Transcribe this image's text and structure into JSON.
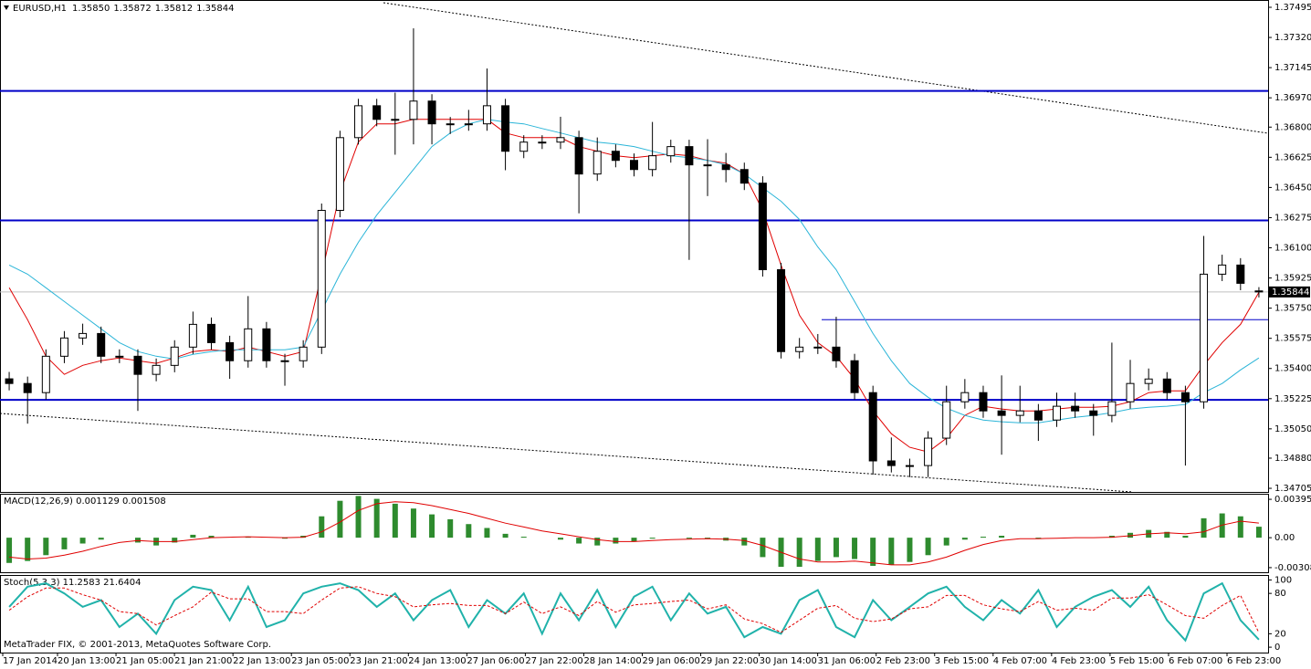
{
  "chart_data": [
    {
      "type": "candlestick",
      "symbol": "EURUSD,H1",
      "quote": [
        "1.35850",
        "1.35872",
        "1.35812",
        "1.35844"
      ],
      "price_tag": "1.35844",
      "up_color": "#ffffff",
      "down_color": "#000000",
      "level_color": "#0000c8",
      "open": [
        1.3534,
        1.35313,
        1.3526,
        1.35471,
        1.35577,
        1.35603,
        1.35471,
        1.35471,
        1.35366,
        1.35418,
        1.35524,
        1.35656,
        1.3555,
        1.35445,
        1.3563,
        1.35445,
        1.35445,
        1.35524,
        1.36317,
        1.36739,
        1.36924,
        1.36845,
        1.36845,
        1.36951,
        1.36819,
        1.36819,
        1.36819,
        1.36924,
        1.3666,
        1.36713,
        1.36713,
        1.36739,
        1.36528,
        1.3666,
        1.36607,
        1.36554,
        1.36634,
        1.36687,
        1.36581,
        1.36581,
        1.36554,
        1.36475,
        1.35973,
        1.35498,
        1.35524,
        1.35524,
        1.35445,
        1.3526,
        1.34864,
        1.34837,
        1.34837,
        1.34996,
        1.35207,
        1.3526,
        1.35154,
        1.35128,
        1.35154,
        1.35101,
        1.35181,
        1.35154,
        1.35128,
        1.35207,
        1.35313,
        1.35339,
        1.3526,
        1.35207,
        1.35947,
        1.36,
        1.3585
      ],
      "high": [
        1.3538,
        1.35353,
        1.35511,
        1.35617,
        1.3566,
        1.35643,
        1.35511,
        1.35511,
        1.35458,
        1.35564,
        1.3573,
        1.35696,
        1.3559,
        1.3582,
        1.3567,
        1.35485,
        1.35564,
        1.36357,
        1.36779,
        1.36964,
        1.36964,
        1.37,
        1.37373,
        1.36991,
        1.36859,
        1.369,
        1.3714,
        1.36964,
        1.36753,
        1.36753,
        1.3686,
        1.36779,
        1.3674,
        1.367,
        1.36647,
        1.3683,
        1.36727,
        1.36727,
        1.3673,
        1.3665,
        1.36594,
        1.36515,
        1.36013,
        1.35577,
        1.356,
        1.357,
        1.35485,
        1.353,
        1.35,
        1.34877,
        1.35036,
        1.353,
        1.35339,
        1.353,
        1.3536,
        1.353,
        1.35194,
        1.3526,
        1.3526,
        1.35194,
        1.3555,
        1.3545,
        1.354,
        1.35379,
        1.353,
        1.36169,
        1.3606,
        1.3604,
        1.35872
      ],
      "low": [
        1.35273,
        1.3508,
        1.3522,
        1.35431,
        1.35537,
        1.35431,
        1.35431,
        1.35154,
        1.35326,
        1.35378,
        1.35484,
        1.3551,
        1.3534,
        1.35405,
        1.35405,
        1.353,
        1.35405,
        1.35484,
        1.36277,
        1.36699,
        1.36805,
        1.3664,
        1.367,
        1.367,
        1.3676,
        1.36779,
        1.36779,
        1.3655,
        1.3662,
        1.36673,
        1.36673,
        1.363,
        1.36488,
        1.36567,
        1.36514,
        1.36514,
        1.36594,
        1.3603,
        1.364,
        1.3648,
        1.36435,
        1.35933,
        1.35458,
        1.35458,
        1.35484,
        1.35405,
        1.3522,
        1.34784,
        1.34797,
        1.3477,
        1.3477,
        1.34956,
        1.35167,
        1.35114,
        1.349,
        1.35088,
        1.3498,
        1.35061,
        1.35114,
        1.3501,
        1.35088,
        1.35167,
        1.35273,
        1.3522,
        1.34837,
        1.35167,
        1.35907,
        1.35854,
        1.35812
      ],
      "close": [
        1.35313,
        1.3526,
        1.35471,
        1.35577,
        1.35603,
        1.35471,
        1.35471,
        1.35366,
        1.35418,
        1.35524,
        1.35656,
        1.3555,
        1.35445,
        1.3563,
        1.35445,
        1.35445,
        1.35524,
        1.36317,
        1.36739,
        1.36924,
        1.36845,
        1.36845,
        1.36951,
        1.36819,
        1.36819,
        1.36819,
        1.36924,
        1.3666,
        1.36713,
        1.36713,
        1.36739,
        1.36528,
        1.3666,
        1.36607,
        1.36554,
        1.36634,
        1.36687,
        1.36581,
        1.36581,
        1.36554,
        1.36475,
        1.35973,
        1.35498,
        1.35524,
        1.35524,
        1.35445,
        1.3526,
        1.34864,
        1.34837,
        1.34837,
        1.34996,
        1.35207,
        1.3526,
        1.35154,
        1.35128,
        1.35154,
        1.35101,
        1.35181,
        1.35154,
        1.35128,
        1.35207,
        1.35313,
        1.35339,
        1.3526,
        1.35207,
        1.35947,
        1.36,
        1.35894,
        1.35844
      ],
      "moving_averages": [
        {
          "color": "#e00000",
          "values": [
            1.35868,
            1.35683,
            1.35471,
            1.35366,
            1.35418,
            1.35445,
            1.35461,
            1.35445,
            1.3543,
            1.35461,
            1.35498,
            1.35508,
            1.35498,
            1.35524,
            1.35498,
            1.35471,
            1.35498,
            1.35947,
            1.36422,
            1.36713,
            1.36819,
            1.36819,
            1.36845,
            1.36845,
            1.36845,
            1.36845,
            1.36845,
            1.36766,
            1.36739,
            1.36739,
            1.36739,
            1.36687,
            1.3666,
            1.36634,
            1.36623,
            1.36634,
            1.36644,
            1.36634,
            1.36607,
            1.36591,
            1.36528,
            1.36317,
            1.36,
            1.35709,
            1.3555,
            1.35471,
            1.35339,
            1.35154,
            1.35022,
            1.34943,
            1.34916,
            1.34996,
            1.35128,
            1.35181,
            1.35165,
            1.35154,
            1.35154,
            1.35165,
            1.35175,
            1.35175,
            1.35181,
            1.35207,
            1.3526,
            1.3527,
            1.3527,
            1.35418,
            1.3555,
            1.35656,
            1.35841
          ]
        },
        {
          "color": "#2bb5d8",
          "values": [
            1.36,
            1.35947,
            1.35868,
            1.35788,
            1.35709,
            1.3563,
            1.3555,
            1.35498,
            1.35471,
            1.35455,
            1.35482,
            1.35498,
            1.35508,
            1.35508,
            1.35508,
            1.35508,
            1.35524,
            1.35735,
            1.35947,
            1.36132,
            1.3629,
            1.36422,
            1.36554,
            1.36687,
            1.36766,
            1.36819,
            1.36845,
            1.36829,
            1.36819,
            1.36792,
            1.36766,
            1.36739,
            1.36713,
            1.36702,
            1.36687,
            1.3666,
            1.36634,
            1.36623,
            1.36607,
            1.36581,
            1.36528,
            1.36449,
            1.3637,
            1.36264,
            1.36105,
            1.35973,
            1.35788,
            1.35603,
            1.35445,
            1.35313,
            1.35233,
            1.3517,
            1.35128,
            1.35101,
            1.35091,
            1.35085,
            1.35085,
            1.35101,
            1.35117,
            1.35128,
            1.35144,
            1.35165,
            1.35175,
            1.35181,
            1.35191,
            1.3526,
            1.35313,
            1.35392,
            1.35461
          ]
        }
      ],
      "levels": [
        1.3701,
        1.36259,
        1.35218
      ],
      "support_line": 1.35683,
      "ylim": [
        1.34684,
        1.37532
      ],
      "yticks": [
        1.37495,
        {
          "value": 1.3732,
          "label": "1.37320"
        },
        1.37145,
        {
          "value": 1.3697,
          "label": "1.36970"
        },
        {
          "value": 1.368,
          "label": "1.36800"
        },
        1.36625,
        {
          "value": 1.3645,
          "label": "1.36450"
        },
        1.36275,
        {
          "value": 1.361,
          "label": "1.36100"
        },
        1.35925,
        {
          "value": 1.3575,
          "label": "1.35750"
        },
        1.35575,
        {
          "value": 1.354,
          "label": "1.35400"
        },
        1.35225,
        {
          "value": 1.3505,
          "label": "1.35050"
        },
        {
          "value": 1.3488,
          "label": "1.34880"
        },
        1.34705
      ],
      "time_labels": [
        "17 Jan 2014",
        "20 Jan 13:00",
        "21 Jan 05:00",
        "21 Jan 21:00",
        "22 Jan 13:00",
        "23 Jan 05:00",
        "23 Jan 21:00",
        "24 Jan 13:00",
        "27 Jan 06:00",
        "27 Jan 22:00",
        "28 Jan 14:00",
        "29 Jan 06:00",
        "29 Jan 22:00",
        "30 Jan 14:00",
        "31 Jan 06:00",
        "2 Feb 23:00",
        "3 Feb 15:00",
        "4 Feb 07:00",
        "4 Feb 23:00",
        "5 Feb 15:00",
        "6 Feb 07:00",
        "6 Feb 23:00"
      ]
    },
    {
      "type": "macd",
      "title": "MACD(12,26,9) 0.001129 0.001508",
      "histogram": {
        "color": "#2e8b2e",
        "values": [
          -0.0026,
          -0.0024,
          -0.0018,
          -0.0012,
          -0.0006,
          -0.0002,
          0,
          -0.0005,
          -0.0008,
          -0.0005,
          0.0003,
          0.0002,
          0,
          0.0001,
          0,
          -0.0001,
          0.0002,
          0.0022,
          0.0038,
          0.0043,
          0.004,
          0.0035,
          0.003,
          0.0024,
          0.0019,
          0.0014,
          0.001,
          0.0004,
          0.0001,
          0,
          -0.0002,
          -0.0006,
          -0.0008,
          -0.0006,
          -0.0004,
          -0.0001,
          0,
          -0.0001,
          -0.0001,
          -0.0003,
          -0.0008,
          -0.002,
          -0.003,
          -0.003,
          -0.0024,
          -0.002,
          -0.0022,
          -0.0029,
          -0.0028,
          -0.0025,
          -0.0018,
          -0.0008,
          -0.0002,
          0.0001,
          0.0002,
          0,
          -0.0001,
          0,
          0,
          0,
          0.0002,
          0.0005,
          0.0008,
          0.0006,
          0.0002,
          0.002,
          0.0025,
          0.0022,
          0.001129
        ]
      },
      "signal": {
        "color": "#e00000",
        "values": [
          -0.002,
          -0.0022,
          -0.0021,
          -0.0018,
          -0.0014,
          -0.0009,
          -0.0005,
          -0.0003,
          -0.0004,
          -0.0004,
          -0.0002,
          0,
          5e-05,
          0.0001,
          5e-05,
          0,
          5e-05,
          0.0006,
          0.0016,
          0.0028,
          0.0035,
          0.0037,
          0.0036,
          0.0033,
          0.0029,
          0.0025,
          0.002,
          0.0015,
          0.0011,
          0.0007,
          0.0004,
          0.0001,
          -0.0002,
          -0.0004,
          -0.0004,
          -0.0003,
          -0.0002,
          -0.00015,
          -0.0001,
          -0.00015,
          -0.0003,
          -0.0008,
          -0.0015,
          -0.0022,
          -0.0025,
          -0.0025,
          -0.0024,
          -0.0026,
          -0.0028,
          -0.0028,
          -0.0025,
          -0.002,
          -0.0013,
          -0.0007,
          -0.0003,
          -0.0001,
          -0.0001,
          -5e-05,
          0,
          0,
          5e-05,
          0.0002,
          0.0004,
          0.0005,
          0.0004,
          0.0006,
          0.0013,
          0.0017,
          0.001508
        ]
      },
      "ylim": [
        -0.00356,
        0.00443
      ],
      "yticks": [
        0.003953,
        {
          "value": 0,
          "label": "0.00"
        },
        -0.003083
      ]
    },
    {
      "type": "stochastic",
      "title": "Stoch(5,3,3) 11.2583 21.6404",
      "footer": "MetaTrader FIX, © 2001-2013, MetaQuotes Software Corp.",
      "main": {
        "color": "#20b2aa",
        "values": [
          60,
          90,
          95,
          80,
          60,
          70,
          30,
          50,
          20,
          70,
          90,
          85,
          40,
          90,
          30,
          40,
          80,
          90,
          95,
          85,
          60,
          80,
          40,
          70,
          85,
          30,
          70,
          50,
          80,
          20,
          80,
          40,
          85,
          30,
          75,
          90,
          40,
          80,
          50,
          60,
          15,
          30,
          20,
          70,
          85,
          30,
          15,
          70,
          40,
          60,
          80,
          90,
          60,
          40,
          70,
          50,
          85,
          30,
          60,
          75,
          85,
          60,
          90,
          40,
          10,
          80,
          95,
          40,
          11.2583
        ]
      },
      "signal": {
        "color": "#e00000",
        "values": [
          55,
          75,
          88,
          88,
          78,
          70,
          53,
          50,
          33,
          47,
          60,
          82,
          72,
          72,
          53,
          53,
          50,
          70,
          88,
          90,
          80,
          75,
          60,
          63,
          65,
          62,
          62,
          50,
          67,
          50,
          60,
          47,
          68,
          52,
          63,
          65,
          68,
          70,
          57,
          63,
          42,
          35,
          22,
          40,
          58,
          62,
          43,
          38,
          42,
          57,
          60,
          77,
          77,
          63,
          57,
          53,
          68,
          55,
          58,
          55,
          73,
          73,
          78,
          63,
          47,
          43,
          62,
          77,
          21.6404
        ]
      },
      "ylim": [
        -8,
        106
      ],
      "yticks": [
        100,
        80,
        20,
        0
      ]
    }
  ]
}
